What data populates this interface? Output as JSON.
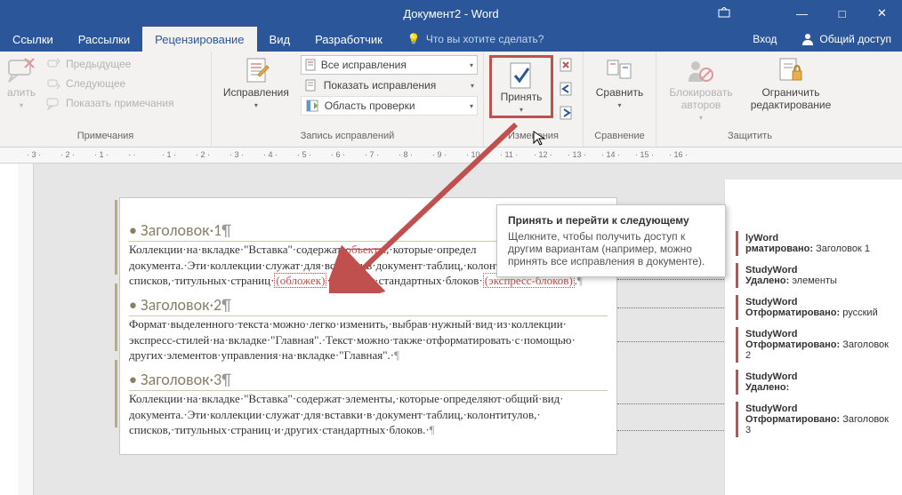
{
  "title": "Документ2 - Word",
  "winBtns": {
    "opts": "▭",
    "min": "—",
    "max": "□",
    "close": "✕"
  },
  "tabs": {
    "items": [
      "Ссылки",
      "Рассылки",
      "Рецензирование",
      "Вид",
      "Разработчик"
    ],
    "activeIndex": 2,
    "tellMe": "Что вы хотите сделать?",
    "signIn": "Вход",
    "share": "Общий доступ"
  },
  "ribbon": {
    "comments": {
      "delete": "алить",
      "prev": "Предыдущее",
      "next": "Следующее",
      "show": "Показать примечания",
      "label": "Примечания"
    },
    "tracking": {
      "btn": "Исправления",
      "display": "Все исправления",
      "showMarkup": "Показать исправления",
      "pane": "Область проверки",
      "label": "Запись исправлений"
    },
    "changes": {
      "accept": "Принять",
      "label": "Изменения"
    },
    "compare": {
      "btn": "Сравнить",
      "label": "Сравнение"
    },
    "protect": {
      "block": "Блокировать авторов",
      "restrict": "Ограничить редактирование",
      "label": "Защитить"
    }
  },
  "tooltip": {
    "title": "Принять и перейти к следующему",
    "body": "Щелкните, чтобы получить доступ к другим вариантам (например, можно принять все исправления в документе)."
  },
  "ruler": [
    "3",
    "2",
    "1",
    "",
    "1",
    "2",
    "3",
    "4",
    "5",
    "6",
    "7",
    "8",
    "9",
    "10",
    "11",
    "12",
    "13",
    "14",
    "15",
    "16"
  ],
  "doc": {
    "h1": "Заголовок·1",
    "p1a": "Коллекции·на·вкладке·\"Вставка\"·содержат·",
    "p1del": "объекты",
    "p1b": ",·которые·определ",
    "p2": "документа.·Эти·коллекции·служат·для·вставки·в·документ·таблиц,·колонтитулов,·",
    "p3a": "списков,·титульных·страниц·",
    "p3ins1": "(обложек)",
    "p3b": "·и·других·стандартных·блоков·",
    "p3ins2": "(экспресс-блоков)",
    "p3c": ".",
    "h2": "Заголовок·2",
    "p4": "Формат·выделенного·текста·можно·легко·изменить,·выбрав·нужный·вид·из·коллекции·",
    "p5": "экспресс-стилей·на·вкладке·\"Главная\".·Текст·можно·также·отформатировать·с·помощью·",
    "p6": "других·элементов·управления·на·вкладке·\"Главная\".·",
    "h3": "Заголовок·3",
    "p7": "Коллекции·на·вкладке·\"Вставка\"·содержат·элементы,·которые·определяют·общий·вид·",
    "p8": "документа.·Эти·коллекции·служат·для·вставки·в·документ·таблиц,·колонтитулов,·",
    "p9": "списков,·титульных·страниц·и·других·стандартных·блоков.·"
  },
  "revisions": [
    {
      "user": "lyWord",
      "label": "рматировано:",
      "val": "Заголовок 1"
    },
    {
      "user": "StudyWord",
      "label": "Удалено:",
      "val": "элементы"
    },
    {
      "user": "StudyWord",
      "label": "Отформатировано:",
      "val": "русский"
    },
    {
      "user": "StudyWord",
      "label": "Отформатировано:",
      "val": "Заголовок 2"
    },
    {
      "user": "StudyWord",
      "label": "Удалено:",
      "val": ""
    },
    {
      "user": "StudyWord",
      "label": "Отформатировано:",
      "val": "Заголовок 3"
    }
  ],
  "colors": {
    "brand": "#2b579a",
    "accent": "#c0504d"
  }
}
